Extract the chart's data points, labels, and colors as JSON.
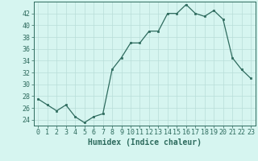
{
  "xlabel": "Humidex (Indice chaleur)",
  "x_values": [
    0,
    1,
    2,
    3,
    4,
    5,
    6,
    7,
    8,
    9,
    10,
    11,
    12,
    13,
    14,
    15,
    16,
    17,
    18,
    19,
    20,
    21,
    22,
    23
  ],
  "y_values": [
    27.5,
    26.5,
    25.5,
    26.5,
    24.5,
    23.5,
    24.5,
    25.0,
    32.5,
    34.5,
    37.0,
    37.0,
    39.0,
    39.0,
    42.0,
    42.0,
    43.5,
    42.0,
    41.5,
    42.5,
    41.0,
    34.5,
    32.5,
    31.0
  ],
  "line_color": "#2e6b5e",
  "marker_color": "#2e6b5e",
  "bg_color": "#d6f5f0",
  "grid_color": "#b8ddd8",
  "tick_label_color": "#2e6b5e",
  "xlabel_color": "#2e6b5e",
  "ylim": [
    23,
    44
  ],
  "yticks": [
    24,
    26,
    28,
    30,
    32,
    34,
    36,
    38,
    40,
    42
  ],
  "xlim": [
    -0.5,
    23.5
  ],
  "xlabel_fontsize": 7,
  "tick_fontsize": 6,
  "marker_size": 2.0,
  "linewidth": 0.9
}
